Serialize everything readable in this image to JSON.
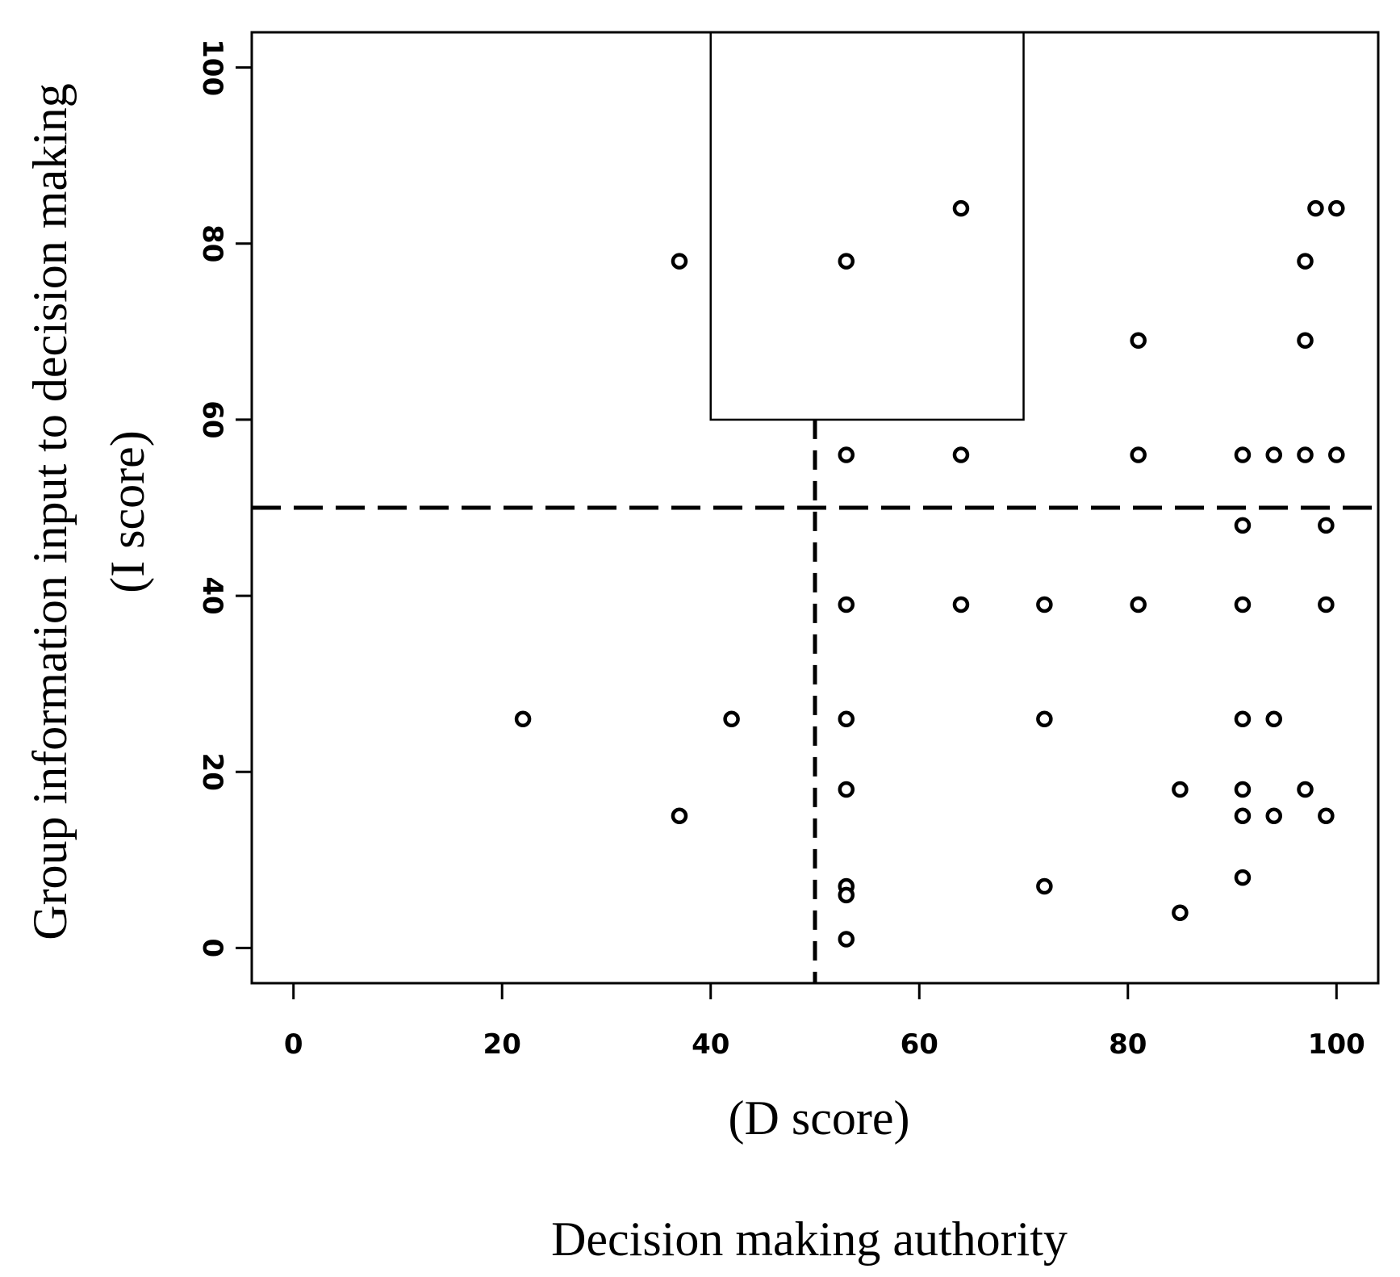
{
  "chart_data": {
    "type": "scatter",
    "title": "",
    "xlabel": "(D score)",
    "xlabel_caption": "Decision making authority",
    "ylabel_line1": "Group information input to decision making",
    "ylabel_line2": "(I score)",
    "xlim": [
      -4,
      104
    ],
    "ylim": [
      -4,
      104
    ],
    "xticks": [
      0,
      20,
      40,
      60,
      80,
      100
    ],
    "xtick_labels": [
      "0",
      "20",
      "40",
      "60",
      "80",
      "100"
    ],
    "yticks": [
      0,
      20,
      40,
      60,
      80,
      100
    ],
    "ytick_labels": [
      "0",
      "20",
      "40",
      "60",
      "80",
      "100"
    ],
    "reference_lines": {
      "vertical_dashed_x": 50,
      "horizontal_dashed_y": 50
    },
    "highlight_region": {
      "x": [
        40,
        70
      ],
      "y": [
        60,
        104
      ]
    },
    "points": [
      {
        "x": 22,
        "y": 26
      },
      {
        "x": 37,
        "y": 78
      },
      {
        "x": 37,
        "y": 15
      },
      {
        "x": 42,
        "y": 26
      },
      {
        "x": 53,
        "y": 78
      },
      {
        "x": 53,
        "y": 56
      },
      {
        "x": 53,
        "y": 39
      },
      {
        "x": 53,
        "y": 26
      },
      {
        "x": 53,
        "y": 18
      },
      {
        "x": 53,
        "y": 7
      },
      {
        "x": 53,
        "y": 6
      },
      {
        "x": 53,
        "y": 1
      },
      {
        "x": 64,
        "y": 84
      },
      {
        "x": 64,
        "y": 56
      },
      {
        "x": 64,
        "y": 39
      },
      {
        "x": 72,
        "y": 39
      },
      {
        "x": 72,
        "y": 26
      },
      {
        "x": 72,
        "y": 7
      },
      {
        "x": 81,
        "y": 69
      },
      {
        "x": 81,
        "y": 56
      },
      {
        "x": 81,
        "y": 39
      },
      {
        "x": 85,
        "y": 18
      },
      {
        "x": 85,
        "y": 4
      },
      {
        "x": 91,
        "y": 56
      },
      {
        "x": 91,
        "y": 48
      },
      {
        "x": 91,
        "y": 39
      },
      {
        "x": 91,
        "y": 26
      },
      {
        "x": 91,
        "y": 18
      },
      {
        "x": 91,
        "y": 15
      },
      {
        "x": 91,
        "y": 8
      },
      {
        "x": 94,
        "y": 56
      },
      {
        "x": 94,
        "y": 26
      },
      {
        "x": 94,
        "y": 15
      },
      {
        "x": 97,
        "y": 78
      },
      {
        "x": 97,
        "y": 69
      },
      {
        "x": 97,
        "y": 56
      },
      {
        "x": 97,
        "y": 18
      },
      {
        "x": 98,
        "y": 84
      },
      {
        "x": 99,
        "y": 48
      },
      {
        "x": 99,
        "y": 39
      },
      {
        "x": 99,
        "y": 15
      },
      {
        "x": 100,
        "y": 84
      },
      {
        "x": 100,
        "y": 56
      }
    ]
  }
}
